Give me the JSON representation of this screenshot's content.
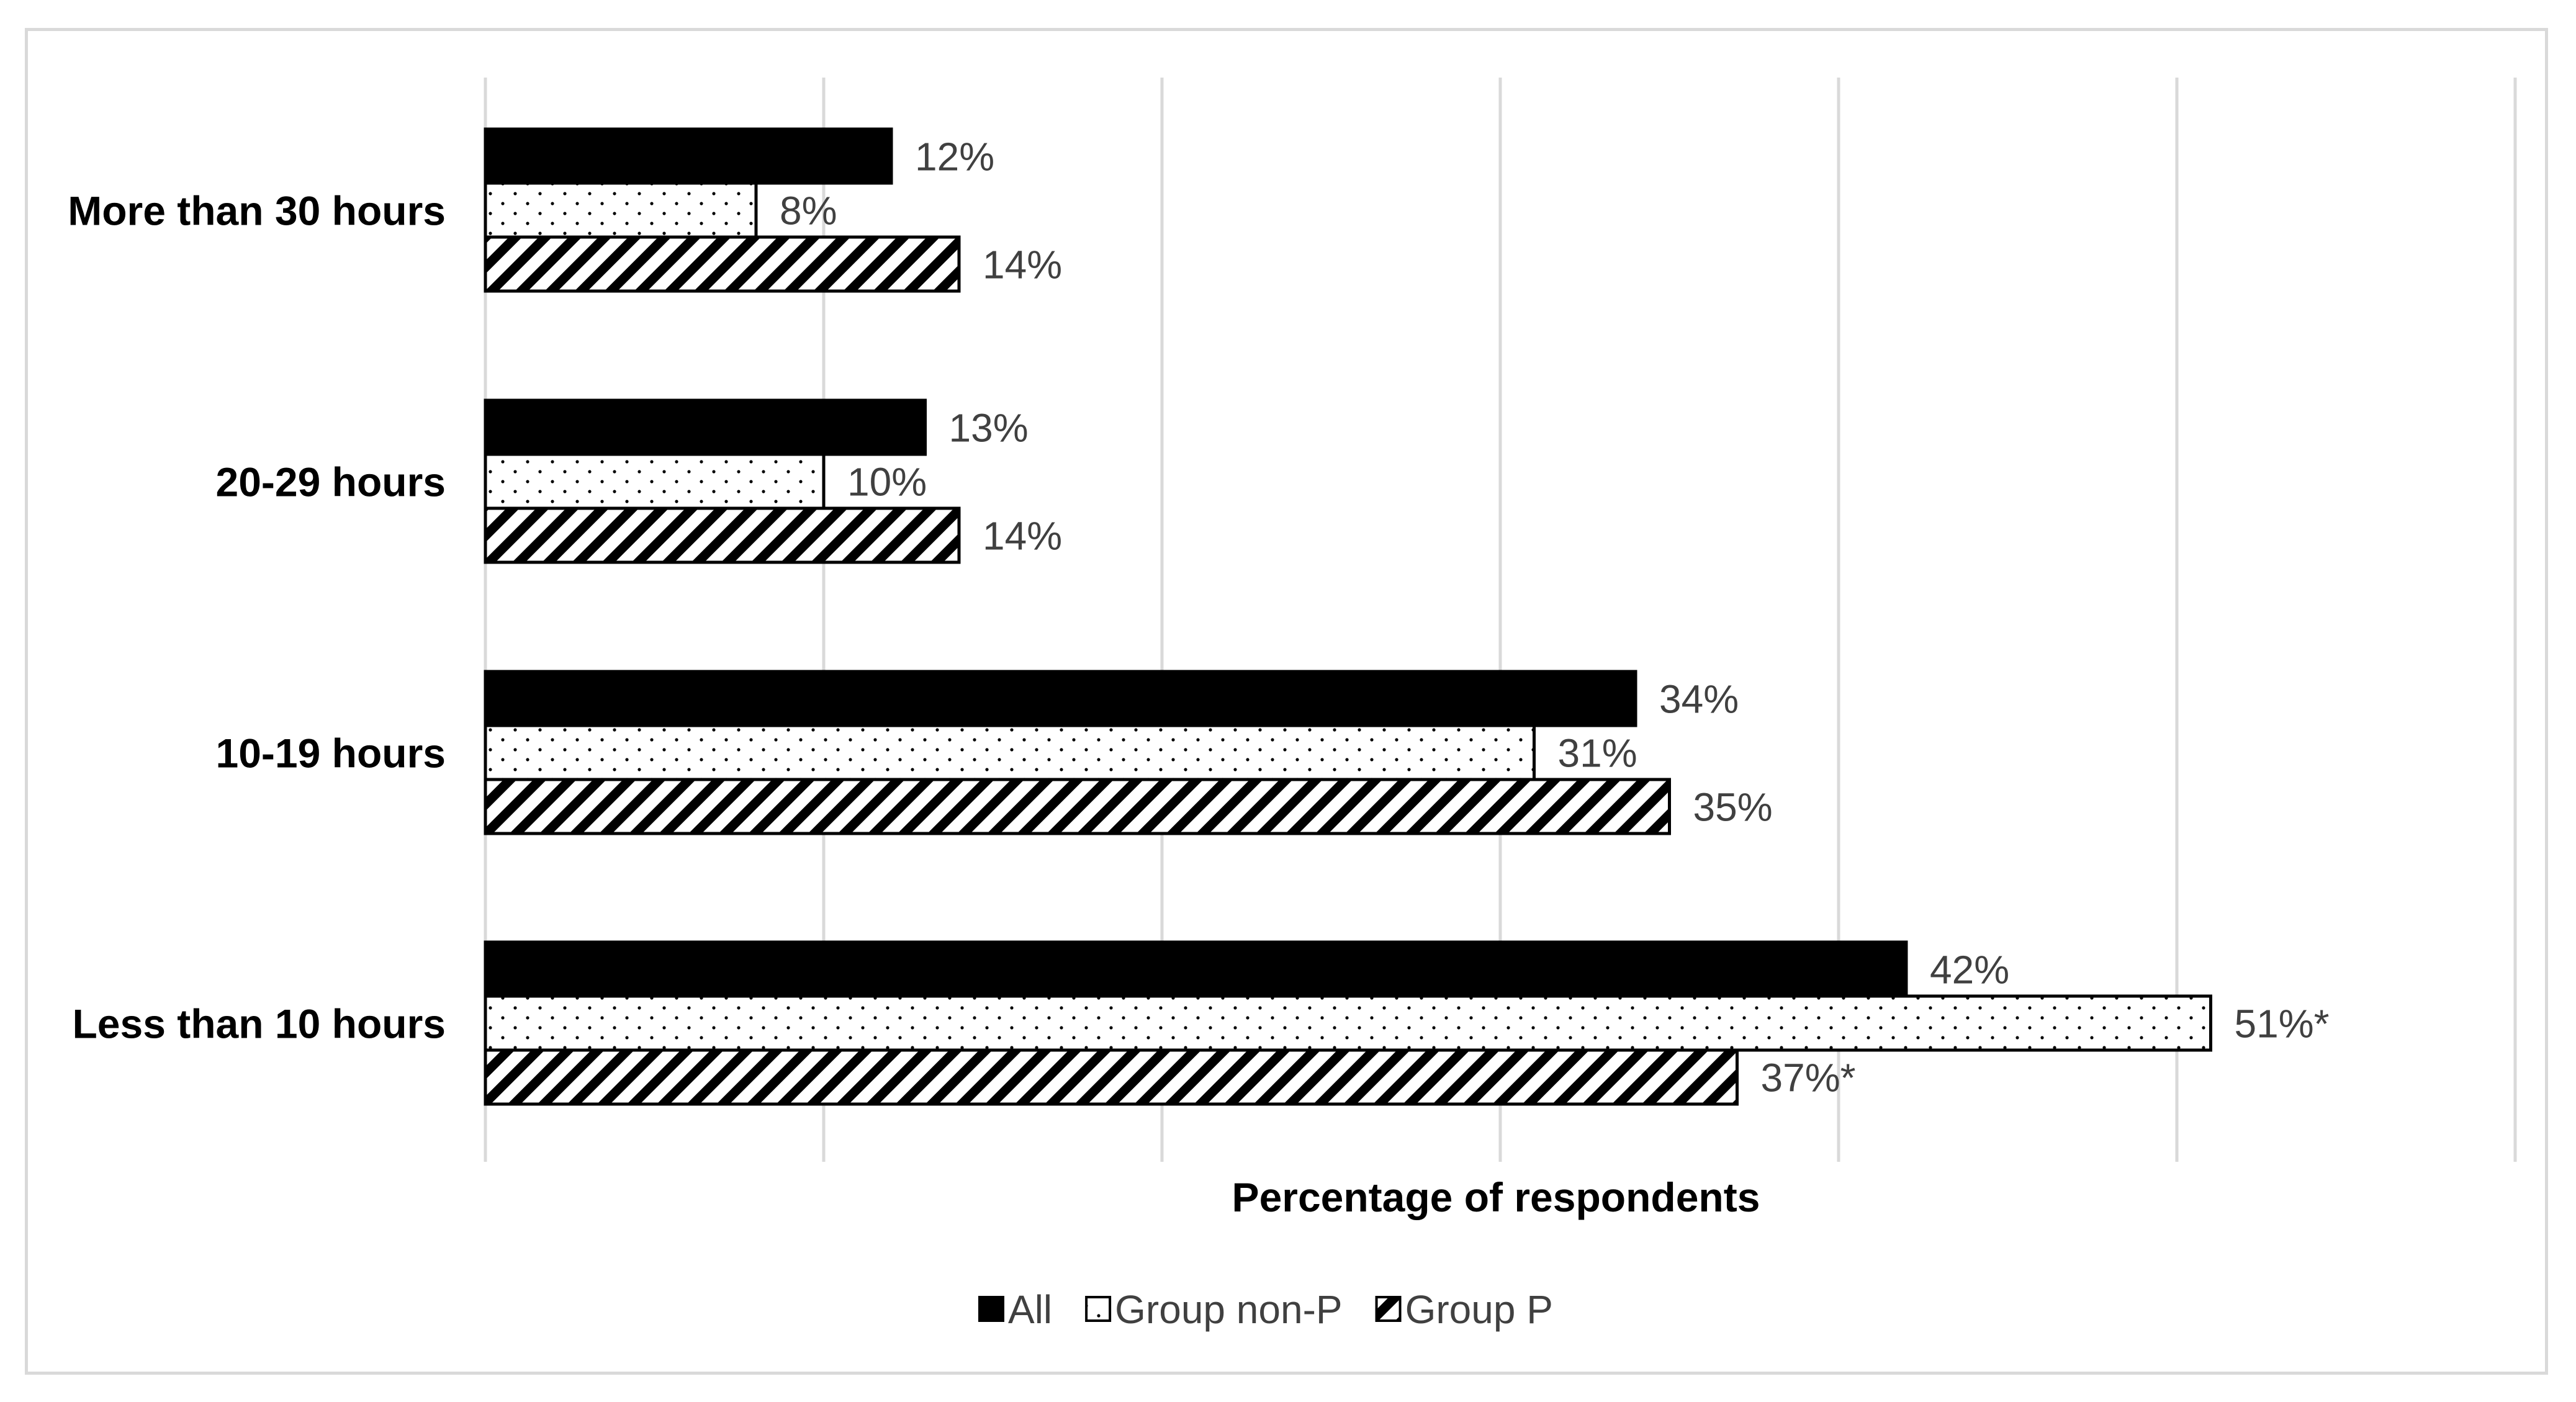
{
  "chart_data": {
    "type": "bar",
    "orientation": "horizontal",
    "categories": [
      "More than 30 hours",
      "20-29 hours",
      "10-19 hours",
      "Less than 10 hours"
    ],
    "series": [
      {
        "name": "All",
        "pattern": "solid",
        "color": "#000000",
        "values": [
          12,
          13,
          34,
          42
        ],
        "labels": [
          "12%",
          "13%",
          "34%",
          "42%"
        ]
      },
      {
        "name": "Group non-P",
        "pattern": "dots",
        "color": "#000000",
        "values": [
          8,
          10,
          31,
          51
        ],
        "labels": [
          "8%",
          "10%",
          "31%",
          "51%*"
        ]
      },
      {
        "name": "Group P",
        "pattern": "diagonal-hatch",
        "color": "#000000",
        "values": [
          14,
          14,
          35,
          37
        ],
        "labels": [
          "14%",
          "14%",
          "35%",
          "37%*"
        ]
      }
    ],
    "xlabel": "Percentage of respondents",
    "ylabel": "",
    "xlim": [
      0,
      60
    ],
    "grid": "vertical",
    "legend": "bottom"
  }
}
